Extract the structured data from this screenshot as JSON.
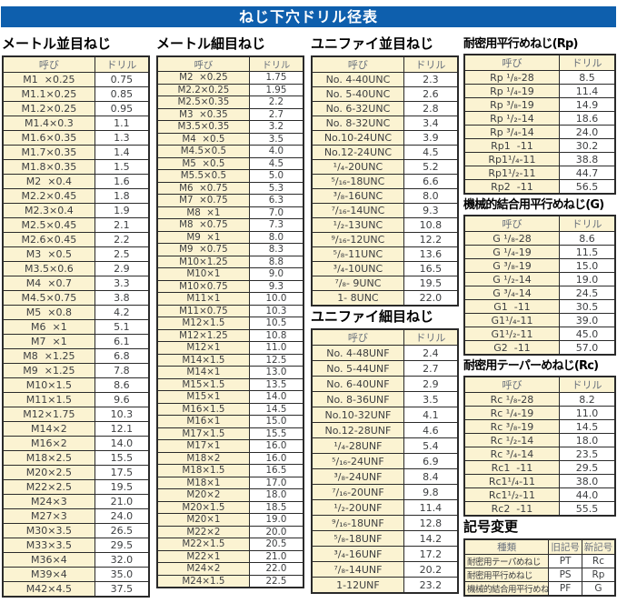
{
  "title": "ねじ下穴ドリル径表",
  "tables": {
    "metric_coarse": {
      "heading": "メートル並目ねじ",
      "headers": [
        "呼び",
        "ドリル"
      ],
      "rows": [
        [
          "M1  ×0.25",
          "0.75"
        ],
        [
          "M1.1×0.25",
          "0.85"
        ],
        [
          "M1.2×0.25",
          "0.95"
        ],
        [
          "M1.4×0.3",
          "1.1"
        ],
        [
          "M1.6×0.35",
          "1.3"
        ],
        [
          "M1.7×0.35",
          "1.4"
        ],
        [
          "M1.8×0.35",
          "1.5"
        ],
        [
          "M2  ×0.4",
          "1.6"
        ],
        [
          "M2.2×0.45",
          "1.8"
        ],
        [
          "M2.3×0.4",
          "1.9"
        ],
        [
          "M2.5×0.45",
          "2.1"
        ],
        [
          "M2.6×0.45",
          "2.2"
        ],
        [
          "M3  ×0.5",
          "2.5"
        ],
        [
          "M3.5×0.6",
          "2.9"
        ],
        [
          "M4  ×0.7",
          "3.3"
        ],
        [
          "M4.5×0.75",
          "3.8"
        ],
        [
          "M5  ×0.8",
          "4.2"
        ],
        [
          "M6  ×1",
          "5.1"
        ],
        [
          "M7  ×1",
          "6.1"
        ],
        [
          "M8  ×1.25",
          "6.8"
        ],
        [
          "M9  ×1.25",
          "7.8"
        ],
        [
          "M10×1.5",
          "8.6"
        ],
        [
          "M11×1.5",
          "9.6"
        ],
        [
          "M12×1.75",
          "10.3"
        ],
        [
          "M14×2",
          "12.1"
        ],
        [
          "M16×2",
          "14.0"
        ],
        [
          "M18×2.5",
          "15.5"
        ],
        [
          "M20×2.5",
          "17.5"
        ],
        [
          "M22×2.5",
          "19.5"
        ],
        [
          "M24×3",
          "21.0"
        ],
        [
          "M27×3",
          "24.0"
        ],
        [
          "M30×3.5",
          "26.5"
        ],
        [
          "M33×3.5",
          "29.5"
        ],
        [
          "M36×4",
          "32.0"
        ],
        [
          "M39×4",
          "35.0"
        ],
        [
          "M42×4.5",
          "37.5"
        ]
      ]
    },
    "metric_fine": {
      "heading": "メートル細目ねじ",
      "headers": [
        "呼び",
        "ドリル"
      ],
      "rows": [
        [
          "M2  ×0.25",
          "1.75"
        ],
        [
          "M2.2×0.25",
          "1.95"
        ],
        [
          "M2.5×0.35",
          "2.2"
        ],
        [
          "M3  ×0.35",
          "2.7"
        ],
        [
          "M3.5×0.35",
          "3.2"
        ],
        [
          "M4  ×0.5",
          "3.5"
        ],
        [
          "M4.5×0.5",
          "4.0"
        ],
        [
          "M5  ×0.5",
          "4.5"
        ],
        [
          "M5.5×0.5",
          "5.0"
        ],
        [
          "M6  ×0.75",
          "5.3"
        ],
        [
          "M7  ×0.75",
          "6.3"
        ],
        [
          "M8  ×1",
          "7.0"
        ],
        [
          "M8  ×0.75",
          "7.3"
        ],
        [
          "M9  ×1",
          "8.0"
        ],
        [
          "M9  ×0.75",
          "8.3"
        ],
        [
          "M10×1.25",
          "8.8"
        ],
        [
          "M10×1",
          "9.0"
        ],
        [
          "M10×0.75",
          "9.3"
        ],
        [
          "M11×1",
          "10.0"
        ],
        [
          "M11×0.75",
          "10.3"
        ],
        [
          "M12×1.5",
          "10.5"
        ],
        [
          "M12×1.25",
          "10.8"
        ],
        [
          "M12×1",
          "11.0"
        ],
        [
          "M14×1.5",
          "12.5"
        ],
        [
          "M14×1",
          "13.0"
        ],
        [
          "M15×1.5",
          "13.5"
        ],
        [
          "M15×1",
          "14.0"
        ],
        [
          "M16×1.5",
          "14.5"
        ],
        [
          "M16×1",
          "15.0"
        ],
        [
          "M17×1.5",
          "15.5"
        ],
        [
          "M17×1",
          "16.0"
        ],
        [
          "M18×2",
          "16.0"
        ],
        [
          "M18×1.5",
          "16.5"
        ],
        [
          "M18×1",
          "17.0"
        ],
        [
          "M20×2",
          "18.0"
        ],
        [
          "M20×1.5",
          "18.5"
        ],
        [
          "M20×1",
          "19.0"
        ],
        [
          "M22×2",
          "20.0"
        ],
        [
          "M22×1.5",
          "20.5"
        ],
        [
          "M22×1",
          "21.0"
        ],
        [
          "M24×2",
          "22.0"
        ],
        [
          "M24×1.5",
          "22.5"
        ]
      ]
    },
    "unified_coarse": {
      "heading": "ユニファイ並目ねじ",
      "headers": [
        "呼び",
        "ドリル"
      ],
      "rows": [
        [
          "No. 4-40UNC",
          "2.3"
        ],
        [
          "No. 5-40UNC",
          "2.6"
        ],
        [
          "No. 6-32UNC",
          "2.8"
        ],
        [
          "No. 8-32UNC",
          "3.4"
        ],
        [
          "No.10-24UNC",
          "3.9"
        ],
        [
          "No.12-24UNC",
          "4.5"
        ],
        [
          "¹/₄-20UNC",
          "5.2"
        ],
        [
          "⁵/₁₆-18UNC",
          "6.6"
        ],
        [
          "³/₈-16UNC",
          "8.0"
        ],
        [
          "⁷/₁₆-14UNC",
          "9.3"
        ],
        [
          "¹/₂-13UNC",
          "10.8"
        ],
        [
          "⁹/₁₆-12UNC",
          "12.2"
        ],
        [
          "⁵/₈-11UNC",
          "13.6"
        ],
        [
          "³/₄-10UNC",
          "16.5"
        ],
        [
          "⁷/₈- 9UNC",
          "19.5"
        ],
        [
          "1- 8UNC",
          "22.0"
        ]
      ]
    },
    "unified_fine": {
      "heading": "ユニファイ細目ねじ",
      "headers": [
        "呼び",
        "ドリル"
      ],
      "rows": [
        [
          "No. 4-48UNF",
          "2.4"
        ],
        [
          "No. 5-44UNF",
          "2.7"
        ],
        [
          "No. 6-40UNF",
          "2.9"
        ],
        [
          "No. 8-36UNF",
          "3.5"
        ],
        [
          "No.10-32UNF",
          "4.1"
        ],
        [
          "No.12-28UNF",
          "4.6"
        ],
        [
          "¹/₄-28UNF",
          "5.4"
        ],
        [
          "⁵/₁₆-24UNF",
          "6.9"
        ],
        [
          "³/₈-24UNF",
          "8.4"
        ],
        [
          "⁷/₁₆-20UNF",
          "9.8"
        ],
        [
          "¹/₂-20UNF",
          "11.4"
        ],
        [
          "⁹/₁₆-18UNF",
          "12.8"
        ],
        [
          "⁵/₈-18UNF",
          "14.2"
        ],
        [
          "³/₄-16UNF",
          "17.2"
        ],
        [
          "⁷/₈-14UNF",
          "20.2"
        ],
        [
          "1-12UNF",
          "23.2"
        ]
      ]
    },
    "rp": {
      "heading": "耐密用平行めねじ(Rp)",
      "headers": [
        "呼び",
        "ドリル"
      ],
      "rows": [
        [
          "Rp ¹/₈-28",
          "8.5"
        ],
        [
          "Rp ¹/₄-19",
          "11.4"
        ],
        [
          "Rp ³/₈-19",
          "14.9"
        ],
        [
          "Rp ¹/₂-14",
          "18.6"
        ],
        [
          "Rp ³/₄-14",
          "24.0"
        ],
        [
          "Rp1  -11",
          "30.2"
        ],
        [
          "Rp1¹/₄-11",
          "38.8"
        ],
        [
          "Rp1¹/₂-11",
          "44.7"
        ],
        [
          "Rp2  -11",
          "56.5"
        ]
      ]
    },
    "g": {
      "heading": "機械的結合用平行めねじ(G)",
      "headers": [
        "呼び",
        "ドリル"
      ],
      "rows": [
        [
          "G ¹/₈-28",
          "8.6"
        ],
        [
          "G ¹/₄-19",
          "11.5"
        ],
        [
          "G ³/₈-19",
          "15.0"
        ],
        [
          "G ¹/₂-14",
          "19.0"
        ],
        [
          "G ³/₄-14",
          "24.5"
        ],
        [
          "G1  -11",
          "30.5"
        ],
        [
          "G1¹/₄-11",
          "39.0"
        ],
        [
          "G1¹/₂-11",
          "45.0"
        ],
        [
          "G2  -11",
          "57.0"
        ]
      ]
    },
    "rc": {
      "heading": "耐密用テーパーめねじ(Rc)",
      "headers": [
        "呼び",
        "ドリル"
      ],
      "rows": [
        [
          "Rc ¹/₈-28",
          "8.2"
        ],
        [
          "Rc ¹/₄-19",
          "11.0"
        ],
        [
          "Rc ³/₈-19",
          "14.5"
        ],
        [
          "Rc ¹/₂-14",
          "18.0"
        ],
        [
          "Rc ³/₄-14",
          "23.5"
        ],
        [
          "Rc1  -11",
          "29.5"
        ],
        [
          "Rc1¹/₄-11",
          "38.0"
        ],
        [
          "Rc1¹/₂-11",
          "44.0"
        ],
        [
          "Rc2  -11",
          "55.5"
        ]
      ]
    },
    "symbol_change": {
      "heading": "記号変更",
      "headers": [
        "種類",
        "旧記号",
        "新記号"
      ],
      "rows": [
        [
          "耐密用テーパめねじ",
          "PT",
          "Rc"
        ],
        [
          "耐密用平行めねじ",
          "PS",
          "Rp"
        ],
        [
          "機械的結合用平行めねじ",
          "PF",
          "G"
        ]
      ]
    }
  },
  "colors": {
    "title_bar_bg": "#0e5fad",
    "title_bar_text": "#ffffff",
    "cell_cream": "#fbf3d2",
    "header_text": "#68707c",
    "data_text": "#3c3e40",
    "border": "#2a2a2a"
  }
}
